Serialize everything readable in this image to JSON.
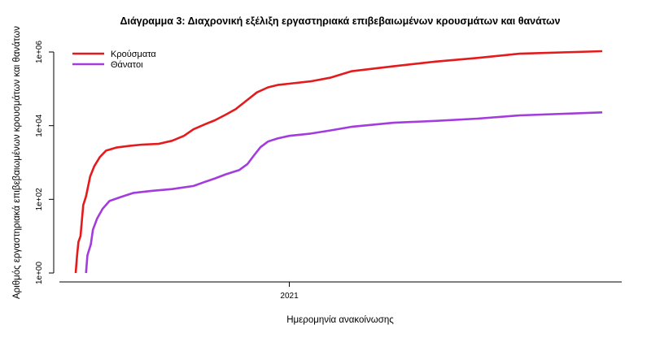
{
  "chart_data": {
    "type": "line",
    "title": "Διάγραμμα 3: Διαχρονική εξέλιξη εργαστηριακά επιβεβαιωμένων κρουσμάτων και θανάτων",
    "xlabel": "Ημερομηνία ανακοίνωσης",
    "ylabel": "Αριθμός εργαστηριακά επιβεβαιωμένων κρουσμάτων και θανάτων",
    "y_scale": "log",
    "ylim": [
      1,
      1000000
    ],
    "y_ticks": [
      {
        "value": 1,
        "label": "1e+00"
      },
      {
        "value": 100,
        "label": "1e+02"
      },
      {
        "value": 10000,
        "label": "1e+04"
      },
      {
        "value": 1000000,
        "label": "1e+06"
      }
    ],
    "xlim": [
      "2020-02-26",
      "2022-03-31"
    ],
    "x_ticks": [
      {
        "value": "2021-01-01",
        "label": "2021"
      }
    ],
    "legend_position": "top-left",
    "grid": false,
    "series": [
      {
        "name": "Κρούσματα",
        "color": "#e41a1c",
        "points": [
          [
            "2020-02-26",
            1
          ],
          [
            "2020-02-28",
            3
          ],
          [
            "2020-03-01",
            7
          ],
          [
            "2020-03-04",
            10
          ],
          [
            "2020-03-08",
            70
          ],
          [
            "2020-03-12",
            120
          ],
          [
            "2020-03-18",
            420
          ],
          [
            "2020-03-24",
            800
          ],
          [
            "2020-04-01",
            1400
          ],
          [
            "2020-04-10",
            2100
          ],
          [
            "2020-04-25",
            2550
          ],
          [
            "2020-05-15",
            2850
          ],
          [
            "2020-06-01",
            3050
          ],
          [
            "2020-06-25",
            3200
          ],
          [
            "2020-07-15",
            3900
          ],
          [
            "2020-08-01",
            5300
          ],
          [
            "2020-08-15",
            8000
          ],
          [
            "2020-09-01",
            11000
          ],
          [
            "2020-09-15",
            14000
          ],
          [
            "2020-10-01",
            20000
          ],
          [
            "2020-10-15",
            28000
          ],
          [
            "2020-11-01",
            50000
          ],
          [
            "2020-11-15",
            80000
          ],
          [
            "2020-12-01",
            110000
          ],
          [
            "2020-12-15",
            127000
          ],
          [
            "2021-01-01",
            138000
          ],
          [
            "2021-02-01",
            160000
          ],
          [
            "2021-03-01",
            200000
          ],
          [
            "2021-04-01",
            300000
          ],
          [
            "2021-06-01",
            410000
          ],
          [
            "2021-08-01",
            550000
          ],
          [
            "2021-10-01",
            690000
          ],
          [
            "2021-12-01",
            900000
          ],
          [
            "2022-03-31",
            1050000
          ]
        ]
      },
      {
        "name": "Θάνατοι",
        "color": "#a33cdc",
        "points": [
          [
            "2020-03-12",
            1
          ],
          [
            "2020-03-14",
            3
          ],
          [
            "2020-03-16",
            4
          ],
          [
            "2020-03-19",
            6
          ],
          [
            "2020-03-22",
            15
          ],
          [
            "2020-03-28",
            30
          ],
          [
            "2020-04-05",
            55
          ],
          [
            "2020-04-15",
            90
          ],
          [
            "2020-05-01",
            115
          ],
          [
            "2020-05-20",
            150
          ],
          [
            "2020-06-15",
            170
          ],
          [
            "2020-07-15",
            190
          ],
          [
            "2020-08-15",
            230
          ],
          [
            "2020-09-01",
            300
          ],
          [
            "2020-09-15",
            370
          ],
          [
            "2020-10-01",
            480
          ],
          [
            "2020-10-20",
            620
          ],
          [
            "2020-11-01",
            900
          ],
          [
            "2020-11-10",
            1500
          ],
          [
            "2020-11-20",
            2600
          ],
          [
            "2020-12-01",
            3700
          ],
          [
            "2020-12-15",
            4500
          ],
          [
            "2021-01-01",
            5300
          ],
          [
            "2021-02-01",
            6100
          ],
          [
            "2021-03-01",
            7400
          ],
          [
            "2021-04-01",
            9300
          ],
          [
            "2021-06-01",
            12000
          ],
          [
            "2021-08-01",
            13500
          ],
          [
            "2021-10-01",
            15500
          ],
          [
            "2021-12-01",
            19000
          ],
          [
            "2022-03-31",
            23000
          ]
        ]
      }
    ]
  }
}
